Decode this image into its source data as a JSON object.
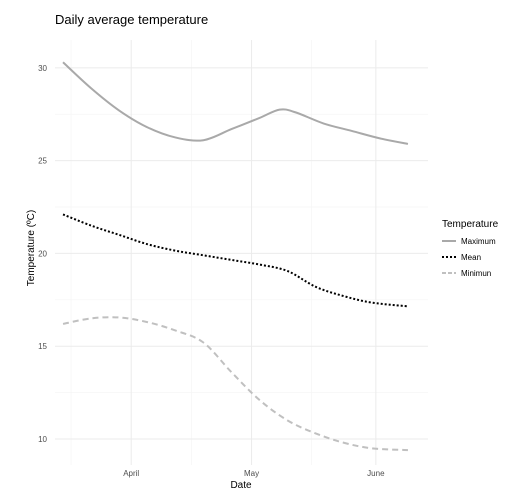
{
  "chart_data": {
    "type": "line",
    "title": "Daily average temperature",
    "xlabel": "Date",
    "ylabel": "Temperature (ºC)",
    "x_tick_labels": [
      {
        "label": "April",
        "date": "2023-04-01"
      },
      {
        "label": "May",
        "date": "2023-05-01"
      },
      {
        "label": "June",
        "date": "2023-06-01"
      }
    ],
    "x_minor_dates": [
      "2023-03-17",
      "2023-04-16",
      "2023-05-16"
    ],
    "xlim": [
      "2023-03-13",
      "2023-06-14"
    ],
    "y_ticks": [
      10,
      15,
      20,
      25,
      30
    ],
    "ylim": [
      8.6,
      31.5
    ],
    "grid": true,
    "legend": {
      "title": "Temperature",
      "placement": "right",
      "entries": [
        "Maximum",
        "Mean",
        "Minimun"
      ]
    },
    "series": [
      {
        "name": "Maximum",
        "color": "#a9a9a9",
        "dash": "solid",
        "x": [
          "2023-03-15",
          "2023-03-22",
          "2023-03-29",
          "2023-04-05",
          "2023-04-12",
          "2023-04-19",
          "2023-04-26",
          "2023-05-03",
          "2023-05-08",
          "2023-05-12",
          "2023-05-19",
          "2023-05-26",
          "2023-06-02",
          "2023-06-09"
        ],
        "y": [
          30.3,
          28.9,
          27.7,
          26.8,
          26.25,
          26.1,
          26.7,
          27.3,
          27.75,
          27.6,
          27.0,
          26.6,
          26.2,
          25.9
        ]
      },
      {
        "name": "Mean",
        "color": "#000000",
        "dash": "dotted",
        "x": [
          "2023-03-15",
          "2023-03-22",
          "2023-03-29",
          "2023-04-05",
          "2023-04-12",
          "2023-04-19",
          "2023-04-26",
          "2023-05-03",
          "2023-05-10",
          "2023-05-17",
          "2023-05-24",
          "2023-05-31",
          "2023-06-09"
        ],
        "y": [
          22.1,
          21.5,
          21.0,
          20.5,
          20.15,
          19.9,
          19.65,
          19.4,
          19.05,
          18.2,
          17.7,
          17.35,
          17.15
        ]
      },
      {
        "name": "Minimun",
        "color": "#c0c0c0",
        "dash": "dashed",
        "x": [
          "2023-03-15",
          "2023-03-22",
          "2023-03-29",
          "2023-04-05",
          "2023-04-12",
          "2023-04-19",
          "2023-04-26",
          "2023-05-03",
          "2023-05-10",
          "2023-05-17",
          "2023-05-24",
          "2023-05-31",
          "2023-06-09"
        ],
        "y": [
          16.2,
          16.5,
          16.55,
          16.3,
          15.85,
          15.2,
          13.6,
          12.1,
          11.0,
          10.3,
          9.8,
          9.5,
          9.4
        ]
      }
    ]
  }
}
